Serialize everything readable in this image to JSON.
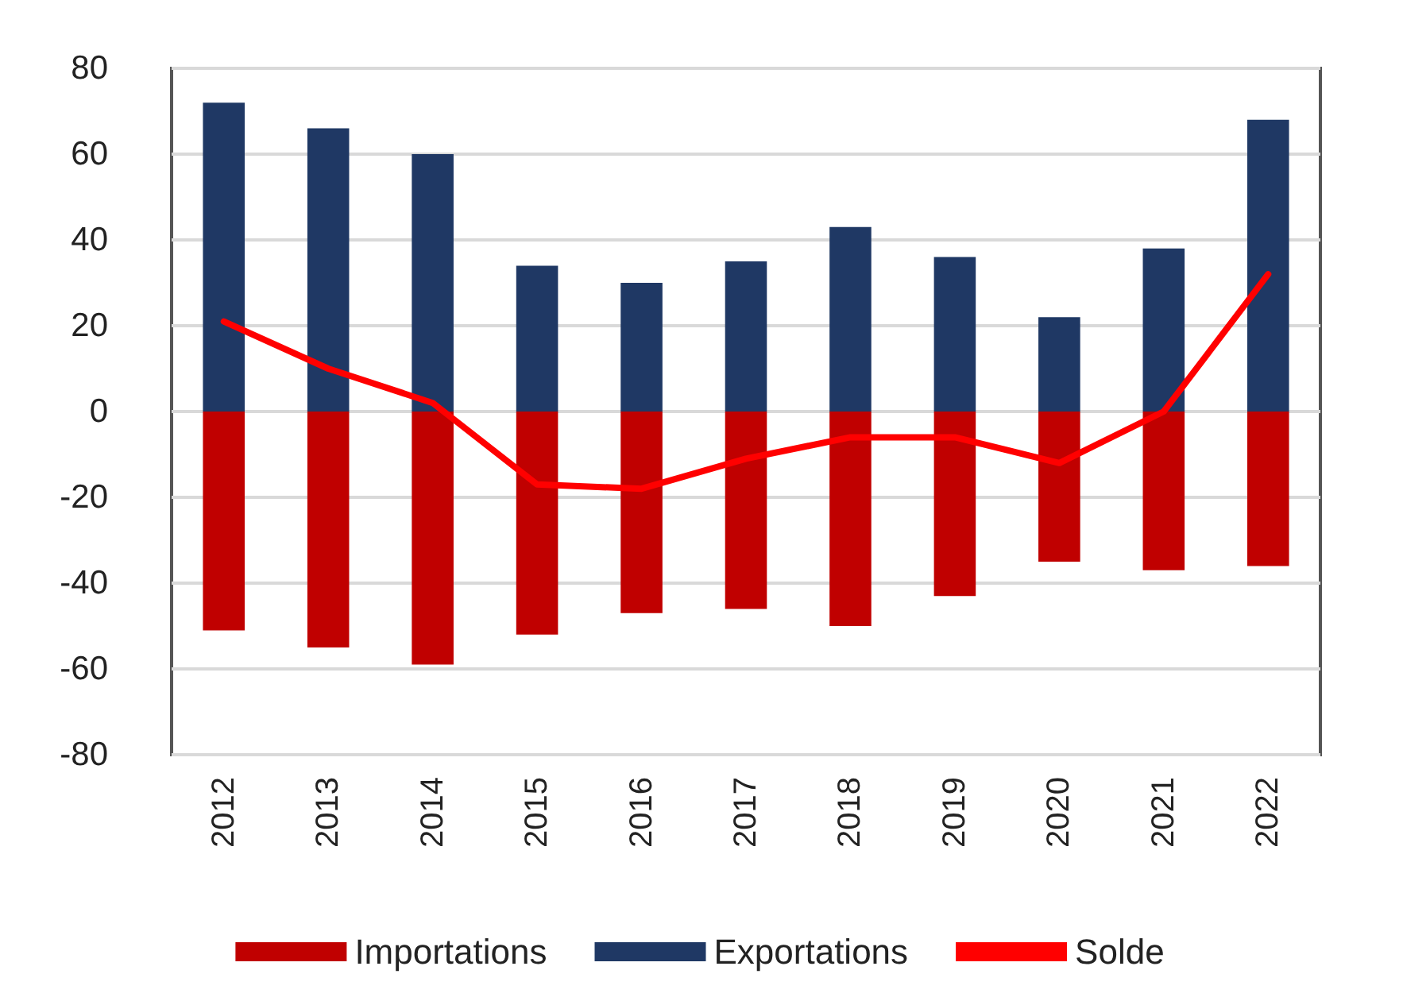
{
  "chart_data": {
    "type": "bar",
    "stacked": true,
    "categories": [
      "2012",
      "2013",
      "2014",
      "2015",
      "2016",
      "2017",
      "2018",
      "2019",
      "2020",
      "2021",
      "2022"
    ],
    "series": [
      {
        "name": "Importations",
        "color": "#c00000",
        "values": [
          -51,
          -55,
          -59,
          -52,
          -47,
          -46,
          -50,
          -43,
          -35,
          -37,
          -36
        ]
      },
      {
        "name": "Exportations",
        "color": "#1f3864",
        "values": [
          72,
          66,
          60,
          34,
          30,
          35,
          43,
          36,
          22,
          38,
          68
        ]
      },
      {
        "name": "Solde",
        "type": "line",
        "color": "#ff0000",
        "values": [
          21,
          10,
          2,
          -17,
          -18,
          -11,
          -6,
          -6,
          -12,
          0,
          32
        ]
      }
    ],
    "ylim": [
      -80,
      80
    ],
    "yticks": [
      -80,
      -60,
      -40,
      -20,
      0,
      20,
      40,
      60,
      80
    ],
    "grid": "y",
    "legend": "bottom"
  }
}
